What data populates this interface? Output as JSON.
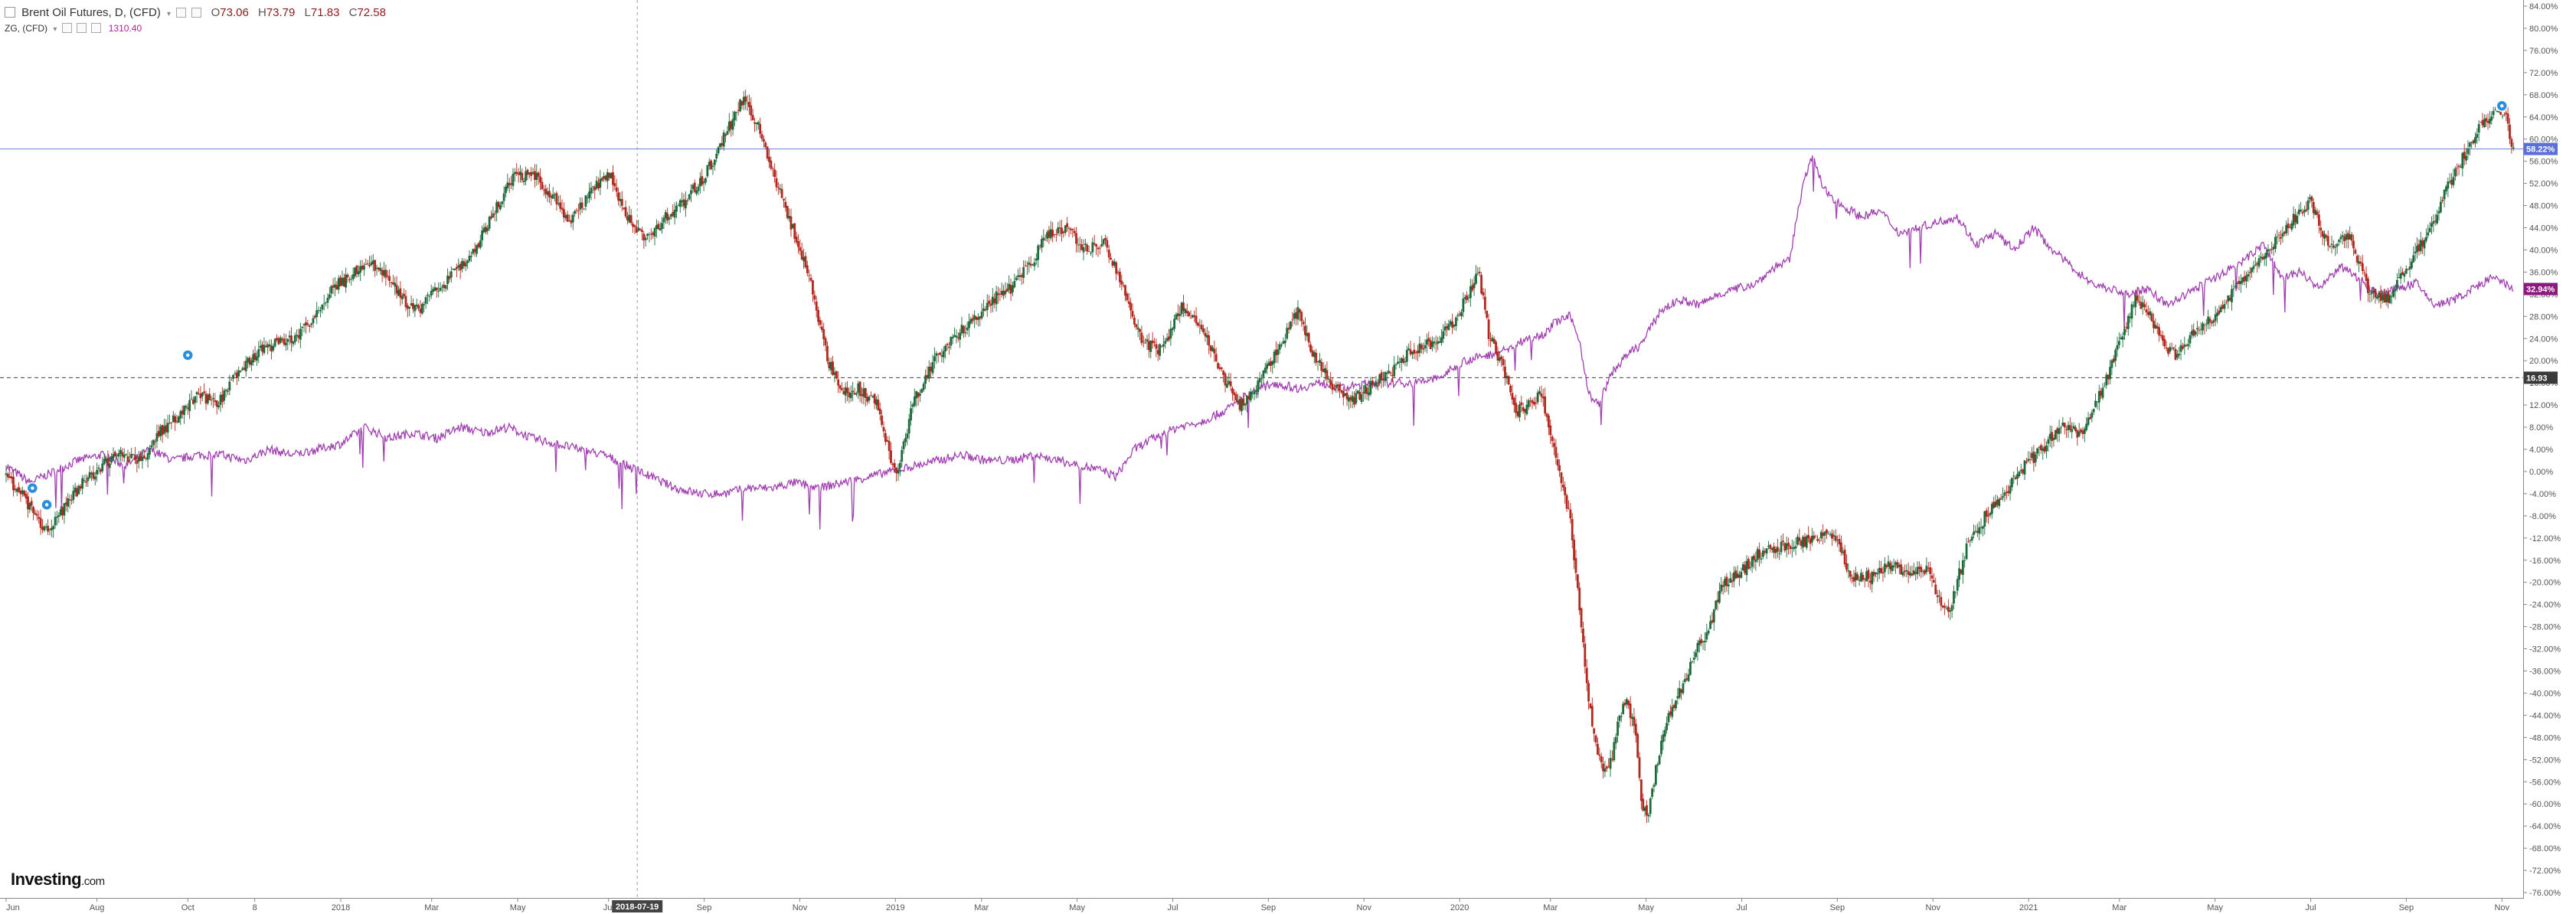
{
  "legend": {
    "main_title": "Brent Oil Futures, D, (CFD)",
    "open_label": "O",
    "open": "73.06",
    "high_label": "H",
    "high": "73.79",
    "low_label": "L",
    "low": "71.83",
    "close_label": "C",
    "close": "72.58",
    "secondary_title": "ZG, (CFD)",
    "secondary_value": "1310.40"
  },
  "logo": {
    "brand": "Investing",
    "suffix": ".com"
  },
  "crosshair_date": "2018-07-19",
  "chart_data": {
    "type": "line",
    "title": "Brent Oil Futures, D, (CFD)",
    "y_unit": "percent change",
    "ylim": [
      -76,
      84
    ],
    "y_ticks": [
      "84.00%",
      "80.00%",
      "76.00%",
      "72.00%",
      "68.00%",
      "64.00%",
      "60.00%",
      "56.00%",
      "52.00%",
      "48.00%",
      "44.00%",
      "40.00%",
      "36.00%",
      "32.00%",
      "28.00%",
      "24.00%",
      "20.00%",
      "16.00%",
      "12.00%",
      "8.00%",
      "4.00%",
      "0.00%",
      "-4.00%",
      "-8.00%",
      "-12.00%",
      "-16.00%",
      "-20.00%",
      "-24.00%",
      "-28.00%",
      "-32.00%",
      "-36.00%",
      "-40.00%",
      "-44.00%",
      "-48.00%",
      "-52.00%",
      "-56.00%",
      "-60.00%",
      "-64.00%",
      "-68.00%",
      "-72.00%",
      "-76.00%"
    ],
    "x_ticks": [
      {
        "label": "Jun",
        "x": 0
      },
      {
        "label": "Aug",
        "x": 1.9
      },
      {
        "label": "Oct",
        "x": 3.8
      },
      {
        "label": "8",
        "x": 5.2
      },
      {
        "label": "2018",
        "x": 7
      },
      {
        "label": "Mar",
        "x": 8.9
      },
      {
        "label": "May",
        "x": 10.7
      },
      {
        "label": "Jul",
        "x": 12.6
      },
      {
        "label": "Sep",
        "x": 14.6
      },
      {
        "label": "Nov",
        "x": 16.6
      },
      {
        "label": "2019",
        "x": 18.6
      },
      {
        "label": "Mar",
        "x": 20.4
      },
      {
        "label": "May",
        "x": 22.4
      },
      {
        "label": "Jul",
        "x": 24.4
      },
      {
        "label": "Sep",
        "x": 26.4
      },
      {
        "label": "Nov",
        "x": 28.4
      },
      {
        "label": "2020",
        "x": 30.4
      },
      {
        "label": "Mar",
        "x": 32.3
      },
      {
        "label": "May",
        "x": 34.3
      },
      {
        "label": "Jul",
        "x": 36.3
      },
      {
        "label": "Sep",
        "x": 38.3
      },
      {
        "label": "Nov",
        "x": 40.3
      },
      {
        "label": "2021",
        "x": 42.3
      },
      {
        "label": "Mar",
        "x": 44.2
      },
      {
        "label": "May",
        "x": 46.2
      },
      {
        "label": "Jul",
        "x": 48.2
      },
      {
        "label": "Sep",
        "x": 50.2
      },
      {
        "label": "Nov",
        "x": 52.2
      }
    ],
    "x_range": [
      0,
      52.5
    ],
    "series": [
      {
        "name": "Brent Oil Futures",
        "style": "candles",
        "up_color": "#1d6b3c",
        "down_color": "#b3281e",
        "points": [
          [
            0,
            -1
          ],
          [
            0.4,
            -5
          ],
          [
            0.8,
            -11
          ],
          [
            1.2,
            -7
          ],
          [
            1.6,
            -2
          ],
          [
            2.0,
            1
          ],
          [
            2.4,
            3
          ],
          [
            2.8,
            2
          ],
          [
            3.2,
            7
          ],
          [
            3.6,
            10
          ],
          [
            4.0,
            14
          ],
          [
            4.4,
            12
          ],
          [
            4.8,
            17
          ],
          [
            5.2,
            21
          ],
          [
            5.6,
            23
          ],
          [
            6.0,
            24
          ],
          [
            6.4,
            27
          ],
          [
            6.8,
            33
          ],
          [
            7.2,
            35
          ],
          [
            7.6,
            38
          ],
          [
            8.0,
            35
          ],
          [
            8.3,
            31
          ],
          [
            8.6,
            29
          ],
          [
            9.0,
            33
          ],
          [
            9.4,
            36
          ],
          [
            9.8,
            40
          ],
          [
            10.2,
            47
          ],
          [
            10.6,
            53
          ],
          [
            11.0,
            54
          ],
          [
            11.4,
            50
          ],
          [
            11.8,
            45
          ],
          [
            12.2,
            50
          ],
          [
            12.6,
            54
          ],
          [
            13.0,
            46
          ],
          [
            13.4,
            42
          ],
          [
            13.8,
            46
          ],
          [
            14.2,
            49
          ],
          [
            14.6,
            53
          ],
          [
            15.0,
            60
          ],
          [
            15.4,
            67
          ],
          [
            15.7,
            63
          ],
          [
            16.0,
            55
          ],
          [
            16.4,
            45
          ],
          [
            16.8,
            35
          ],
          [
            17.2,
            20
          ],
          [
            17.5,
            14
          ],
          [
            17.8,
            15
          ],
          [
            18.2,
            12
          ],
          [
            18.4,
            6
          ],
          [
            18.6,
            -1
          ],
          [
            19.0,
            13
          ],
          [
            19.4,
            20
          ],
          [
            19.8,
            24
          ],
          [
            20.2,
            27
          ],
          [
            20.6,
            31
          ],
          [
            21.0,
            33
          ],
          [
            21.4,
            37
          ],
          [
            21.8,
            43
          ],
          [
            22.2,
            44
          ],
          [
            22.6,
            40
          ],
          [
            23.0,
            41
          ],
          [
            23.4,
            32
          ],
          [
            23.8,
            23
          ],
          [
            24.2,
            22
          ],
          [
            24.6,
            30
          ],
          [
            25.0,
            26
          ],
          [
            25.4,
            18
          ],
          [
            25.8,
            12
          ],
          [
            26.2,
            16
          ],
          [
            26.6,
            22
          ],
          [
            27.0,
            29
          ],
          [
            27.4,
            20
          ],
          [
            27.8,
            15
          ],
          [
            28.2,
            13
          ],
          [
            28.6,
            16
          ],
          [
            29.0,
            18
          ],
          [
            29.4,
            22
          ],
          [
            29.8,
            23
          ],
          [
            30.2,
            26
          ],
          [
            30.6,
            32
          ],
          [
            30.8,
            36
          ],
          [
            31.0,
            25
          ],
          [
            31.3,
            19
          ],
          [
            31.6,
            11
          ],
          [
            31.9,
            12
          ],
          [
            32.1,
            14
          ],
          [
            32.3,
            7
          ],
          [
            32.5,
            0
          ],
          [
            32.7,
            -8
          ],
          [
            32.75,
            -12
          ],
          [
            32.9,
            -24
          ],
          [
            33.1,
            -41
          ],
          [
            33.3,
            -52
          ],
          [
            33.5,
            -55
          ],
          [
            33.7,
            -46
          ],
          [
            33.9,
            -41
          ],
          [
            34.1,
            -48
          ],
          [
            34.2,
            -60
          ],
          [
            34.35,
            -62
          ],
          [
            34.5,
            -54
          ],
          [
            34.8,
            -43
          ],
          [
            35.0,
            -40
          ],
          [
            35.3,
            -33
          ],
          [
            35.6,
            -29
          ],
          [
            35.9,
            -20
          ],
          [
            36.2,
            -19
          ],
          [
            36.6,
            -15
          ],
          [
            37.0,
            -14
          ],
          [
            37.4,
            -13
          ],
          [
            37.8,
            -12
          ],
          [
            38.2,
            -11
          ],
          [
            38.6,
            -19
          ],
          [
            39.0,
            -19
          ],
          [
            39.4,
            -17
          ],
          [
            39.8,
            -18
          ],
          [
            40.2,
            -18
          ],
          [
            40.6,
            -26
          ],
          [
            41.0,
            -14
          ],
          [
            41.4,
            -8
          ],
          [
            41.8,
            -4
          ],
          [
            42.2,
            1
          ],
          [
            42.6,
            4
          ],
          [
            43.0,
            9
          ],
          [
            43.4,
            6
          ],
          [
            43.8,
            14
          ],
          [
            44.2,
            23
          ],
          [
            44.5,
            31
          ],
          [
            44.8,
            29
          ],
          [
            45.1,
            23
          ],
          [
            45.4,
            21
          ],
          [
            45.8,
            26
          ],
          [
            46.2,
            28
          ],
          [
            46.6,
            33
          ],
          [
            47.0,
            36
          ],
          [
            47.4,
            41
          ],
          [
            47.8,
            45
          ],
          [
            48.2,
            49
          ],
          [
            48.6,
            40
          ],
          [
            49.0,
            43
          ],
          [
            49.4,
            33
          ],
          [
            49.8,
            31
          ],
          [
            50.2,
            37
          ],
          [
            50.6,
            42
          ],
          [
            51.0,
            50
          ],
          [
            51.4,
            57
          ],
          [
            51.8,
            63
          ],
          [
            52.1,
            65
          ],
          [
            52.3,
            64
          ],
          [
            52.45,
            57
          ]
        ]
      },
      {
        "name": "ZG",
        "style": "line",
        "color": "#a040b0",
        "points": [
          [
            0,
            1
          ],
          [
            0.5,
            -2
          ],
          [
            1.0,
            0
          ],
          [
            1.5,
            2
          ],
          [
            2.0,
            3
          ],
          [
            2.5,
            1
          ],
          [
            3.0,
            4
          ],
          [
            3.5,
            2
          ],
          [
            4.0,
            3
          ],
          [
            4.5,
            3
          ],
          [
            5.0,
            2
          ],
          [
            5.5,
            4
          ],
          [
            6.0,
            3
          ],
          [
            6.5,
            4
          ],
          [
            7.0,
            5
          ],
          [
            7.5,
            8
          ],
          [
            8.0,
            6
          ],
          [
            8.5,
            7
          ],
          [
            9.0,
            6
          ],
          [
            9.5,
            8
          ],
          [
            10.0,
            7
          ],
          [
            10.5,
            8
          ],
          [
            11.0,
            6
          ],
          [
            11.5,
            5
          ],
          [
            12.0,
            4
          ],
          [
            12.5,
            3
          ],
          [
            13.0,
            1
          ],
          [
            13.5,
            -1
          ],
          [
            14.0,
            -3
          ],
          [
            14.5,
            -4
          ],
          [
            15.0,
            -4
          ],
          [
            15.5,
            -3
          ],
          [
            16.0,
            -3
          ],
          [
            16.5,
            -2
          ],
          [
            17.0,
            -3
          ],
          [
            17.5,
            -2
          ],
          [
            18.0,
            -1
          ],
          [
            18.5,
            0
          ],
          [
            19.0,
            1
          ],
          [
            19.5,
            2
          ],
          [
            20.0,
            3
          ],
          [
            20.5,
            2
          ],
          [
            21.0,
            2
          ],
          [
            21.5,
            3
          ],
          [
            22.0,
            2
          ],
          [
            22.5,
            1
          ],
          [
            23.0,
            0
          ],
          [
            23.2,
            -1
          ],
          [
            23.6,
            4
          ],
          [
            24.0,
            6
          ],
          [
            24.5,
            8
          ],
          [
            25.0,
            9
          ],
          [
            25.5,
            11
          ],
          [
            26.0,
            14
          ],
          [
            26.5,
            16
          ],
          [
            27.0,
            15
          ],
          [
            27.5,
            16
          ],
          [
            28.0,
            15
          ],
          [
            28.5,
            16
          ],
          [
            29.0,
            16
          ],
          [
            29.5,
            16
          ],
          [
            30.0,
            17
          ],
          [
            30.5,
            20
          ],
          [
            31.0,
            21
          ],
          [
            31.4,
            22
          ],
          [
            31.8,
            24
          ],
          [
            32.2,
            25
          ],
          [
            32.4,
            27
          ],
          [
            32.7,
            28
          ],
          [
            32.9,
            24
          ],
          [
            33.1,
            14
          ],
          [
            33.3,
            12
          ],
          [
            33.6,
            18
          ],
          [
            33.9,
            21
          ],
          [
            34.2,
            23
          ],
          [
            34.6,
            29
          ],
          [
            35.0,
            31
          ],
          [
            35.4,
            30
          ],
          [
            35.8,
            32
          ],
          [
            36.2,
            33
          ],
          [
            36.6,
            34
          ],
          [
            37.0,
            37
          ],
          [
            37.3,
            38
          ],
          [
            37.6,
            53
          ],
          [
            37.8,
            57
          ],
          [
            38.0,
            51
          ],
          [
            38.4,
            48
          ],
          [
            38.8,
            46
          ],
          [
            39.2,
            47
          ],
          [
            39.6,
            43
          ],
          [
            40.0,
            44
          ],
          [
            40.4,
            45
          ],
          [
            40.8,
            46
          ],
          [
            41.2,
            41
          ],
          [
            41.6,
            43
          ],
          [
            42.0,
            40
          ],
          [
            42.4,
            44
          ],
          [
            42.8,
            40
          ],
          [
            43.2,
            37
          ],
          [
            43.6,
            34
          ],
          [
            44.0,
            33
          ],
          [
            44.4,
            32
          ],
          [
            44.8,
            33
          ],
          [
            45.2,
            30
          ],
          [
            45.6,
            32
          ],
          [
            46.0,
            34
          ],
          [
            46.4,
            36
          ],
          [
            46.8,
            38
          ],
          [
            47.2,
            41
          ],
          [
            47.6,
            35
          ],
          [
            48.0,
            36
          ],
          [
            48.4,
            33
          ],
          [
            48.8,
            37
          ],
          [
            49.2,
            35
          ],
          [
            49.6,
            32
          ],
          [
            50.0,
            33
          ],
          [
            50.4,
            34
          ],
          [
            50.8,
            30
          ],
          [
            51.2,
            31
          ],
          [
            51.6,
            33
          ],
          [
            52.0,
            35
          ],
          [
            52.45,
            33
          ]
        ]
      }
    ],
    "horizontal_lines": [
      {
        "value": 58.22,
        "label": "58.22%",
        "color": "#7a8ce0",
        "line_style": "solid"
      },
      {
        "value": 16.93,
        "label": "16.93",
        "color": "#555555",
        "line_style": "dashed"
      }
    ],
    "current_value_flags": [
      {
        "value": 58.22,
        "label": "58.22%",
        "color": "#5b6fd6"
      },
      {
        "value": 32.94,
        "label": "32.94%",
        "color": "#8b1a7e"
      },
      {
        "value": 16.93,
        "label": "16.93",
        "color": "#3a3a3a"
      }
    ],
    "event_markers": [
      {
        "x": 0.55,
        "value": -3
      },
      {
        "x": 0.85,
        "value": -6
      },
      {
        "x": 3.8,
        "value": 21
      },
      {
        "x": 52.2,
        "value": 66
      }
    ],
    "crosshair_x": 13.2,
    "grid": false,
    "legend_position": "top-left"
  }
}
